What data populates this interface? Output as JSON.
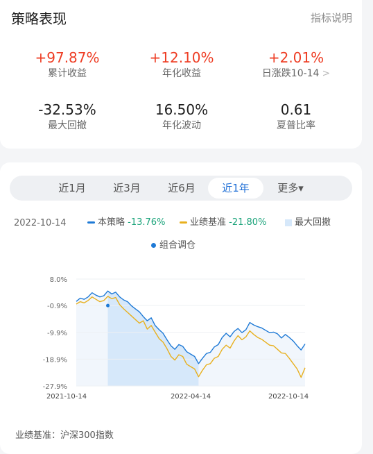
{
  "header": {
    "title": "策略表现",
    "explain_link": "指标说明"
  },
  "metrics": [
    {
      "value": "+97.87%",
      "label": "累计收益"
    },
    {
      "value": "+12.10%",
      "label": "年化收益"
    },
    {
      "value": "+2.01%",
      "label": "日涨跌10-14"
    },
    {
      "value": "-32.53%",
      "label": "最大回撤"
    },
    {
      "value": "16.50%",
      "label": "年化波动"
    },
    {
      "value": "0.61",
      "label": "夏普比率"
    }
  ],
  "tabs": [
    {
      "label": "近1月"
    },
    {
      "label": "近3月"
    },
    {
      "label": "近6月"
    },
    {
      "label": "近1年",
      "active": true
    },
    {
      "label": "更多▾"
    }
  ],
  "legend": {
    "date": "2022-10-14",
    "strategy": {
      "name": "本策略",
      "value": "-13.76%",
      "color": "#1f7ad6"
    },
    "benchmark": {
      "name": "业绩基准",
      "value": "-21.80%",
      "color": "#e8b01e"
    },
    "drawdown": {
      "name": "最大回撤",
      "color": "#d6e8fa"
    },
    "rebalance": {
      "name": "组合调仓",
      "color": "#1f7ad6"
    }
  },
  "chart_data": {
    "type": "line",
    "x_ticks": [
      "2021-10-14",
      "2022-04-14",
      "2022-10-14"
    ],
    "y_ticks": [
      "8.0%",
      "-0.9%",
      "-9.9%",
      "-18.9%",
      "-27.9%"
    ],
    "ylim": [
      -27.9,
      8.0
    ],
    "grid": true,
    "drawdown_range": [
      "2021-12-14",
      "2022-04-25"
    ],
    "series": [
      {
        "name": "本策略",
        "color": "#1f7ad6",
        "values": [
          0.5,
          1.6,
          1.2,
          2.0,
          3.4,
          2.6,
          2.0,
          2.4,
          4.0,
          3.0,
          3.6,
          2.0,
          1.0,
          0.4,
          -1.0,
          -2.0,
          -3.0,
          -4.6,
          -6.0,
          -5.0,
          -7.6,
          -9.0,
          -10.2,
          -12.4,
          -14.4,
          -15.6,
          -14.0,
          -14.6,
          -16.4,
          -17.2,
          -18.0,
          -20.4,
          -18.6,
          -17.0,
          -16.6,
          -14.8,
          -14.0,
          -11.6,
          -10.2,
          -11.4,
          -9.6,
          -8.6,
          -10.0,
          -9.0,
          -6.6,
          -7.4,
          -8.0,
          -8.4,
          -9.2,
          -10.0,
          -9.8,
          -10.4,
          -11.8,
          -10.6,
          -11.6,
          -12.8,
          -14.4,
          -15.8,
          -13.8
        ]
      },
      {
        "name": "业绩基准",
        "color": "#e8b01e",
        "values": [
          -0.4,
          0.4,
          0.0,
          0.8,
          2.0,
          1.2,
          0.4,
          0.8,
          2.2,
          1.4,
          1.8,
          -0.6,
          -2.0,
          -3.2,
          -4.4,
          -5.6,
          -6.8,
          -6.0,
          -8.8,
          -7.6,
          -9.8,
          -12.0,
          -13.2,
          -15.4,
          -18.0,
          -19.2,
          -17.4,
          -18.0,
          -20.6,
          -21.4,
          -22.2,
          -24.8,
          -22.6,
          -20.8,
          -20.4,
          -18.6,
          -18.0,
          -15.6,
          -14.2,
          -15.2,
          -12.8,
          -11.0,
          -12.4,
          -11.4,
          -9.4,
          -10.6,
          -11.6,
          -12.2,
          -13.2,
          -14.2,
          -14.4,
          -15.6,
          -16.8,
          -17.0,
          -18.6,
          -20.4,
          -22.2,
          -25.0,
          -21.8
        ]
      }
    ],
    "rebalance_point": {
      "index": 8,
      "value": -0.9
    }
  },
  "footer": "业绩基准：沪深300指数"
}
